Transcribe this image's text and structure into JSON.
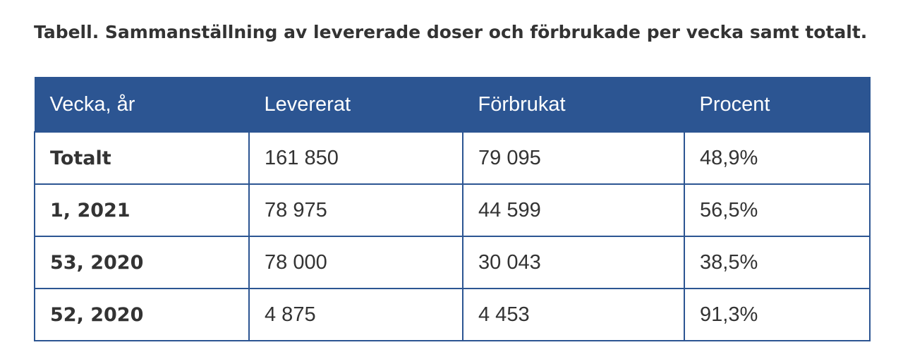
{
  "caption": "Tabell. Sammanställning av levererade doser och förbrukade per vecka samt totalt.",
  "table": {
    "headers": [
      "Vecka, år",
      "Levererat",
      "Förbrukat",
      "Procent"
    ],
    "rows": [
      [
        "Totalt",
        "161 850",
        "79 095",
        "48,9%"
      ],
      [
        "1, 2021",
        "78 975",
        "44 599",
        "56,5%"
      ],
      [
        "53, 2020",
        "78 000",
        "30 043",
        "38,5%"
      ],
      [
        "52, 2020",
        "4 875",
        "4 453",
        "91,3%"
      ]
    ]
  },
  "colors": {
    "header_background": "#2c5592",
    "header_text": "#ffffff",
    "border": "#2c5592",
    "body_text": "#333333"
  }
}
